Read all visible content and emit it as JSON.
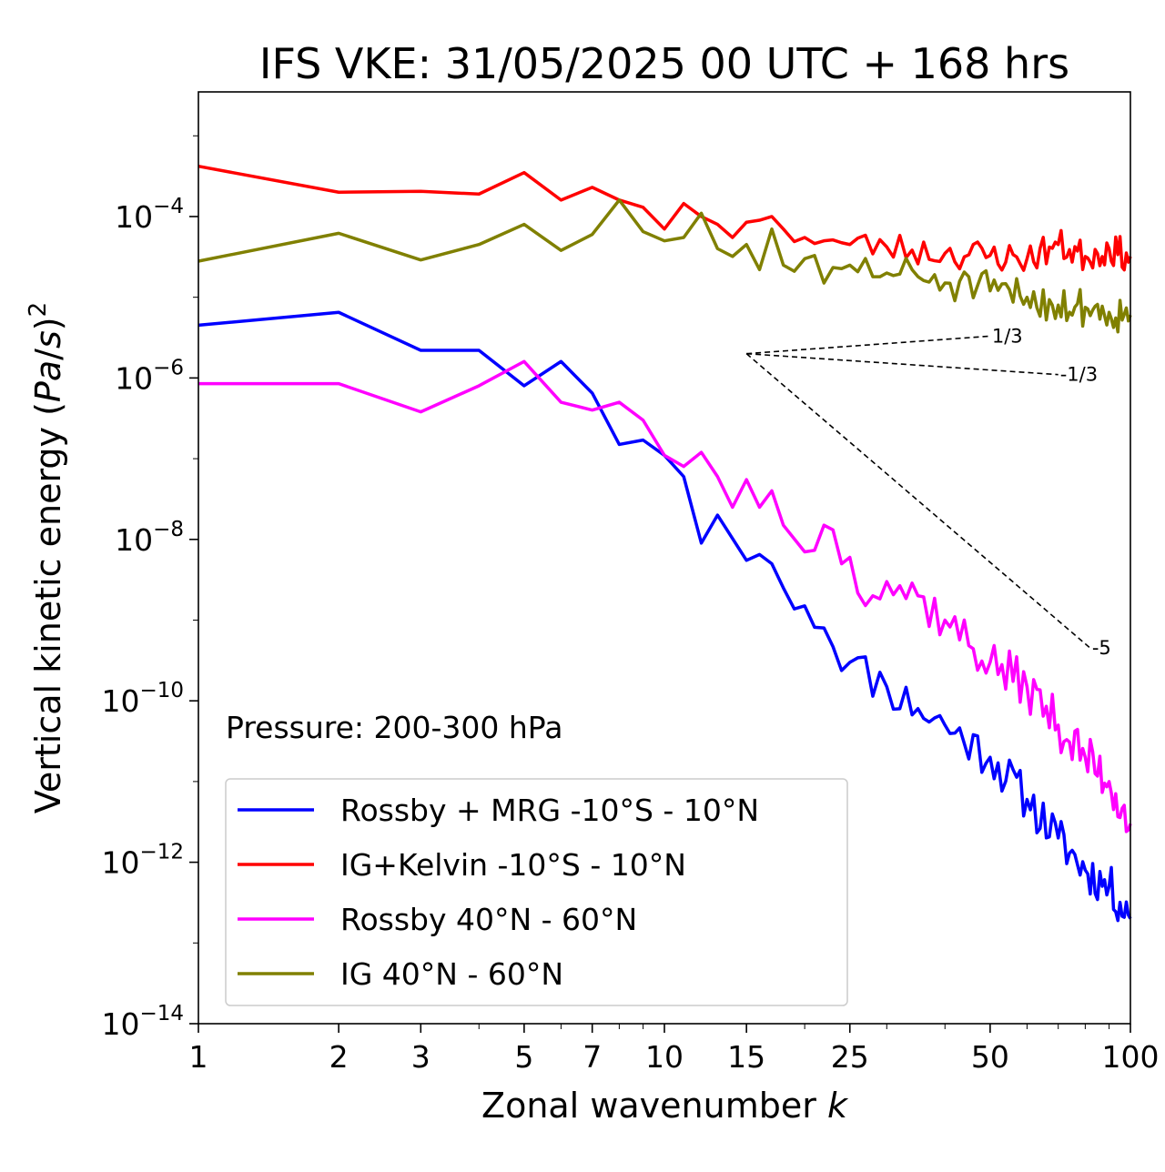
{
  "chart_data": {
    "type": "line",
    "title": "IFS VKE: 31/05/2025 00 UTC + 168 hrs",
    "xlabel": "Zonal wavenumber k",
    "ylabel": "Vertical kinetic energy (Pa/s)²",
    "xscale": "log",
    "yscale": "log",
    "xlim": [
      1,
      100
    ],
    "ylim": [
      1e-14,
      0.0035
    ],
    "x_ticks": [
      1,
      2,
      3,
      5,
      7,
      10,
      15,
      25,
      50,
      100
    ],
    "x_tick_labels": [
      "1",
      "2",
      "3",
      "5",
      "7",
      "10",
      "15",
      "25",
      "50",
      "100"
    ],
    "y_ticks": [
      1e-14,
      1e-12,
      1e-10,
      1e-08,
      1e-06,
      0.0001
    ],
    "y_tick_labels": [
      {
        "base": "10",
        "exp": "−14"
      },
      {
        "base": "10",
        "exp": "−12"
      },
      {
        "base": "10",
        "exp": "−10"
      },
      {
        "base": "10",
        "exp": "−8"
      },
      {
        "base": "10",
        "exp": "−6"
      },
      {
        "base": "10",
        "exp": "−4"
      }
    ],
    "annotation": "Pressure: 200-300 hPa",
    "grid": false,
    "legend_position": "bottom-left",
    "series": [
      {
        "name": "Rossby + MRG -10°S - 10°N",
        "color": "#0000ff",
        "anchors": [
          [
            1,
            4.5e-06
          ],
          [
            2,
            6.5e-06
          ],
          [
            3,
            2.2e-06
          ],
          [
            4,
            2.2e-06
          ],
          [
            5,
            8e-07
          ],
          [
            6,
            1.6e-06
          ],
          [
            7,
            6.5e-07
          ],
          [
            8,
            1.5e-07
          ],
          [
            9,
            1.7e-07
          ],
          [
            10,
            1.1e-07
          ],
          [
            11,
            6e-08
          ],
          [
            12,
            9e-09
          ],
          [
            13,
            2e-08
          ],
          [
            15,
            5.5e-09
          ],
          [
            16,
            6.5e-09
          ],
          [
            17,
            5e-09
          ],
          [
            18,
            2.5e-09
          ],
          [
            20,
            1.5e-09
          ],
          [
            22,
            8e-10
          ],
          [
            25,
            3e-10
          ],
          [
            30,
            1.5e-10
          ],
          [
            35,
            8e-11
          ],
          [
            40,
            5e-11
          ],
          [
            50,
            2e-11
          ],
          [
            60,
            6e-12
          ],
          [
            70,
            2e-12
          ],
          [
            80,
            8e-13
          ],
          [
            90,
            5e-13
          ],
          [
            100,
            2e-13
          ]
        ],
        "noise_from": 15,
        "noise_amp": 0.28,
        "seed": 11
      },
      {
        "name": "IG+Kelvin -10°S - 10°N",
        "color": "#ff0000",
        "anchors": [
          [
            1,
            0.00042
          ],
          [
            2,
            0.0002
          ],
          [
            3,
            0.000205
          ],
          [
            4,
            0.00019
          ],
          [
            5,
            0.00035
          ],
          [
            6,
            0.00016
          ],
          [
            7,
            0.00023
          ],
          [
            8,
            0.00016
          ],
          [
            9,
            0.00013
          ],
          [
            10,
            7e-05
          ],
          [
            11,
            0.000145
          ],
          [
            12,
            0.0001
          ],
          [
            13,
            8e-05
          ],
          [
            14,
            5.5e-05
          ],
          [
            15,
            8.5e-05
          ],
          [
            16,
            9e-05
          ],
          [
            17,
            0.0001
          ],
          [
            18,
            7e-05
          ],
          [
            20,
            5.5e-05
          ],
          [
            22,
            5e-05
          ],
          [
            25,
            4.5e-05
          ],
          [
            30,
            4.2e-05
          ],
          [
            40,
            3.5e-05
          ],
          [
            50,
            3.3e-05
          ],
          [
            60,
            3e-05
          ],
          [
            70,
            4.5e-05
          ],
          [
            80,
            3.2e-05
          ],
          [
            90,
            4e-05
          ],
          [
            100,
            3.2e-05
          ]
        ],
        "noise_from": 18,
        "noise_amp": 0.2,
        "seed": 23
      },
      {
        "name": "Rossby 40°N - 60°N",
        "color": "#ff00ff",
        "anchors": [
          [
            1,
            8.5e-07
          ],
          [
            2,
            8.5e-07
          ],
          [
            3,
            3.8e-07
          ],
          [
            4,
            8e-07
          ],
          [
            5,
            1.6e-06
          ],
          [
            6,
            5e-07
          ],
          [
            7,
            4e-07
          ],
          [
            8,
            5e-07
          ],
          [
            9,
            3e-07
          ],
          [
            10,
            1.1e-07
          ],
          [
            11,
            8e-08
          ],
          [
            12,
            1.2e-07
          ],
          [
            13,
            6e-08
          ],
          [
            14,
            2.5e-08
          ],
          [
            15,
            5.5e-08
          ],
          [
            16,
            2.5e-08
          ],
          [
            17,
            4e-08
          ],
          [
            18,
            1.5e-08
          ],
          [
            20,
            7e-09
          ],
          [
            22,
            1.5e-08
          ],
          [
            25,
            6e-09
          ],
          [
            28,
            2e-09
          ],
          [
            30,
            3e-09
          ],
          [
            35,
            2e-09
          ],
          [
            40,
            1e-09
          ],
          [
            50,
            3e-10
          ],
          [
            60,
            1.5e-10
          ],
          [
            70,
            5e-11
          ],
          [
            80,
            2e-11
          ],
          [
            90,
            1e-11
          ],
          [
            100,
            3e-12
          ]
        ],
        "noise_from": 20,
        "noise_amp": 0.3,
        "seed": 37
      },
      {
        "name": "IG 40°N - 60°N",
        "color": "#808000",
        "anchors": [
          [
            1,
            2.8e-05
          ],
          [
            2,
            6.2e-05
          ],
          [
            3,
            2.9e-05
          ],
          [
            4,
            4.5e-05
          ],
          [
            5,
            8e-05
          ],
          [
            6,
            3.8e-05
          ],
          [
            7,
            6e-05
          ],
          [
            8,
            0.00016
          ],
          [
            9,
            6.5e-05
          ],
          [
            10,
            5e-05
          ],
          [
            11,
            5.5e-05
          ],
          [
            12,
            0.00011
          ],
          [
            13,
            4e-05
          ],
          [
            14,
            3.2e-05
          ],
          [
            15,
            4.5e-05
          ],
          [
            16,
            2.2e-05
          ],
          [
            17,
            7e-05
          ],
          [
            18,
            2.5e-05
          ],
          [
            20,
            3e-05
          ],
          [
            22,
            1.5e-05
          ],
          [
            25,
            2.5e-05
          ],
          [
            30,
            2e-05
          ],
          [
            35,
            1.8e-05
          ],
          [
            40,
            1.5e-05
          ],
          [
            50,
            1.2e-05
          ],
          [
            60,
            1e-05
          ],
          [
            70,
            8e-06
          ],
          [
            80,
            7.5e-06
          ],
          [
            90,
            6.5e-06
          ],
          [
            100,
            6e-06
          ]
        ],
        "noise_from": 15,
        "noise_amp": 0.24,
        "seed": 51
      }
    ],
    "reference_slopes": [
      {
        "label": "1/3",
        "slope": 0.3333,
        "from": [
          15,
          2e-06
        ],
        "to": [
          50,
          3.3e-06
        ]
      },
      {
        "label": "-1/3",
        "slope": -0.3333,
        "from": [
          15,
          2e-06
        ],
        "to": [
          70,
          1.1e-06
        ]
      },
      {
        "label": "-5",
        "slope": -5,
        "from": [
          15,
          2e-06
        ],
        "to": [
          82,
          4.5e-10
        ]
      }
    ]
  }
}
